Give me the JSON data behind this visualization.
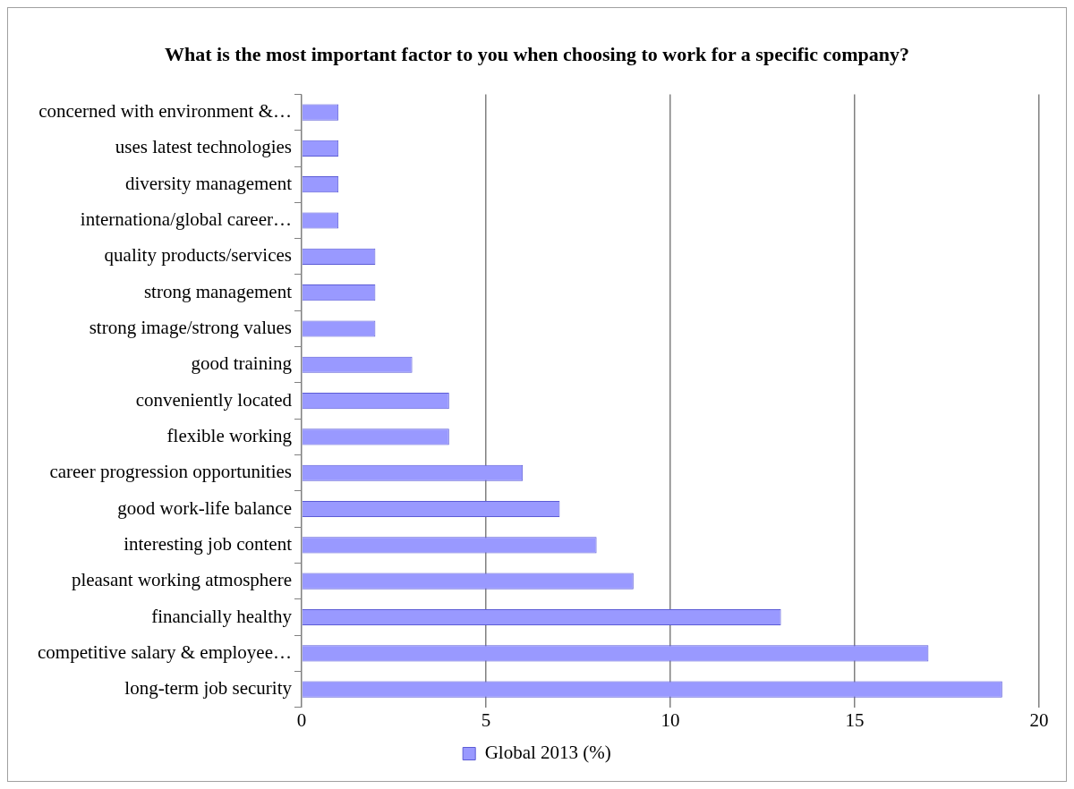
{
  "chart_data": {
    "type": "bar",
    "orientation": "horizontal",
    "title": "What is the most important factor to you when choosing to work for a specific company?",
    "categories": [
      "concerned with environment &…",
      "uses latest technologies",
      "diversity management",
      "internationa/global career…",
      "quality products/services",
      "strong management",
      "strong image/strong values",
      "good training",
      "conveniently located",
      "flexible working",
      "career progression opportunities",
      "good work-life balance",
      "interesting job content",
      "pleasant working atmosphere",
      "financially healthy",
      "competitive salary & employee…",
      "long-term job security"
    ],
    "series": [
      {
        "name": "Global 2013 (%)",
        "color": "#9999ff",
        "values": [
          1,
          1,
          1,
          1,
          2,
          2,
          2,
          3,
          4,
          4,
          6,
          7,
          8,
          9,
          13,
          17,
          19
        ]
      }
    ],
    "xlim": [
      0,
      20
    ],
    "xticks": [
      0,
      5,
      10,
      15,
      20
    ],
    "grid": "x",
    "legend": "bottom"
  }
}
